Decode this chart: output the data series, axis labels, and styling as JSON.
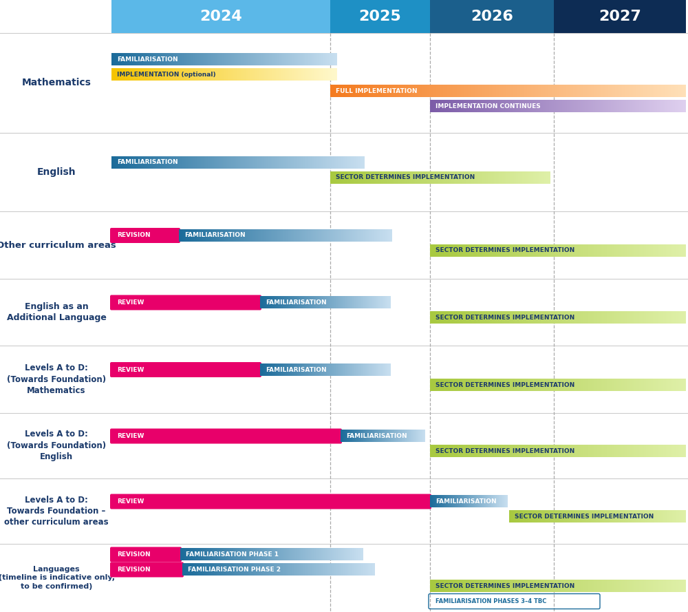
{
  "fig_width": 10.0,
  "fig_height": 8.89,
  "bg_color": "#ffffff",
  "header_colors": [
    "#5BB8E8",
    "#1E90C5",
    "#1B5F8C",
    "#0D2C54"
  ],
  "header_labels": [
    "2024",
    "2025",
    "2026",
    "2027"
  ],
  "dark_navy": "#1B3A6B",
  "pink": "#E8006A",
  "blue_dark": "#1B6B9A",
  "blue_light": "#C8DFF0",
  "green_dark": "#A8C940",
  "green_light": "#DFF0A8",
  "orange_dark": "#F47B20",
  "orange_light": "#FFE0B8",
  "purple_dark": "#7C5CA8",
  "purple_light": "#DFD0EF",
  "yellow_dark": "#F5C400",
  "yellow_light": "#FFF8CC",
  "separator_color": "#CCCCCC",
  "dashed_color": "#AAAAAA"
}
